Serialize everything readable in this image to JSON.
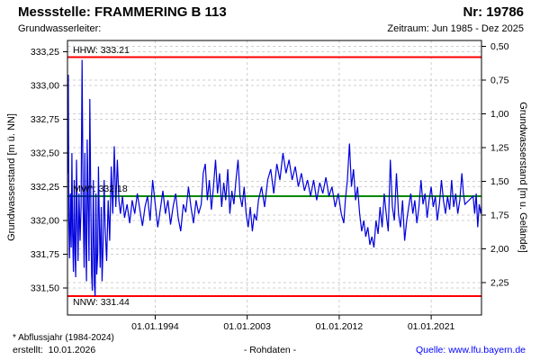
{
  "header": {
    "title": "Messstelle: FRAMMERING B 113",
    "number_label": "Nr: 19786",
    "aquifer_label": "Grundwasserleiter:",
    "period_label": "Zeitraum: Jun 1985 - Dez 2025"
  },
  "footer": {
    "footnote": "* Abflussjahr (1984-2024)",
    "created": "erstellt:  10.01.2026",
    "data_type": "- Rohdaten -",
    "source": "Quelle: www.lfu.bayern.de"
  },
  "colors": {
    "trace": "#0000dd",
    "hhw_nnw_line": "#ff0000",
    "mw_line": "#008800",
    "grid": "#cfcfcf",
    "frame": "#000000",
    "link": "#0000ff"
  },
  "chart_data": {
    "type": "line",
    "title": "",
    "grid": true,
    "x_axis": {
      "range": [
        1985.42,
        2025.92
      ],
      "ticks": [
        {
          "label": "01.01.1994",
          "year": 1994.0
        },
        {
          "label": "01.01.2003",
          "year": 2003.0
        },
        {
          "label": "01.01.2012",
          "year": 2012.0
        },
        {
          "label": "01.01.2021",
          "year": 2021.0
        }
      ]
    },
    "y_axis_left": {
      "title": "Grundwasserstand [m ü. NN]",
      "range": [
        331.3,
        333.3333
      ],
      "ticks": [
        {
          "label": "333,25",
          "value": 333.25
        },
        {
          "label": "333,00",
          "value": 333.0
        },
        {
          "label": "332,75",
          "value": 332.75
        },
        {
          "label": "332,50",
          "value": 332.5
        },
        {
          "label": "332,25",
          "value": 332.25
        },
        {
          "label": "332,00",
          "value": 332.0
        },
        {
          "label": "331,75",
          "value": 331.75
        },
        {
          "label": "331,50",
          "value": 331.5
        }
      ]
    },
    "y_axis_right": {
      "title": "Grundwasserstand [m u. Gelände]",
      "ground_elevation": 333.79,
      "ticks": [
        {
          "label": "0,50",
          "depth": 0.5
        },
        {
          "label": "0,75",
          "depth": 0.75
        },
        {
          "label": "1,00",
          "depth": 1.0
        },
        {
          "label": "1,25",
          "depth": 1.25
        },
        {
          "label": "1,50",
          "depth": 1.5
        },
        {
          "label": "1,75",
          "depth": 1.75
        },
        {
          "label": "2,00",
          "depth": 2.0
        },
        {
          "label": "2,25",
          "depth": 2.25
        }
      ]
    },
    "reference_lines": [
      {
        "name": "HHW",
        "label": "HHW: 333.21",
        "value": 333.21,
        "color": "#ff0000",
        "label_pos": "above"
      },
      {
        "name": "MW",
        "label": "MW*: 332.18",
        "value": 332.18,
        "color": "#008800",
        "label_pos": "above"
      },
      {
        "name": "NNW",
        "label": "NNW: 331.44",
        "value": 331.44,
        "color": "#ff0000",
        "label_pos": "below"
      }
    ],
    "series": [
      {
        "name": "Grundwasserstand Rohdaten",
        "color": "#0000dd",
        "points": [
          [
            1985.45,
            332.35
          ],
          [
            1985.5,
            333.08
          ],
          [
            1985.55,
            332.0
          ],
          [
            1985.62,
            331.72
          ],
          [
            1985.7,
            332.2
          ],
          [
            1985.78,
            331.8
          ],
          [
            1985.85,
            332.5
          ],
          [
            1985.92,
            331.9
          ],
          [
            1986.0,
            331.62
          ],
          [
            1986.08,
            332.3
          ],
          [
            1986.15,
            331.75
          ],
          [
            1986.22,
            331.58
          ],
          [
            1986.3,
            332.45
          ],
          [
            1986.38,
            332.0
          ],
          [
            1986.45,
            331.7
          ],
          [
            1986.55,
            332.2
          ],
          [
            1986.65,
            331.85
          ],
          [
            1986.75,
            332.1
          ],
          [
            1986.85,
            333.19
          ],
          [
            1986.95,
            332.1
          ],
          [
            1987.05,
            331.65
          ],
          [
            1987.12,
            332.5
          ],
          [
            1987.2,
            331.85
          ],
          [
            1987.28,
            331.55
          ],
          [
            1987.35,
            332.6
          ],
          [
            1987.45,
            332.05
          ],
          [
            1987.52,
            331.7
          ],
          [
            1987.6,
            332.9
          ],
          [
            1987.7,
            332.15
          ],
          [
            1987.78,
            331.6
          ],
          [
            1987.85,
            331.48
          ],
          [
            1987.95,
            332.3
          ],
          [
            1988.05,
            331.52
          ],
          [
            1988.12,
            331.44
          ],
          [
            1988.2,
            332.2
          ],
          [
            1988.28,
            331.6
          ],
          [
            1988.38,
            331.75
          ],
          [
            1988.45,
            332.4
          ],
          [
            1988.55,
            331.9
          ],
          [
            1988.62,
            331.65
          ],
          [
            1988.72,
            332.1
          ],
          [
            1988.8,
            331.55
          ],
          [
            1988.9,
            331.8
          ],
          [
            1989.0,
            332.3
          ],
          [
            1989.1,
            331.95
          ],
          [
            1989.25,
            331.7
          ],
          [
            1989.4,
            332.15
          ],
          [
            1989.55,
            331.85
          ],
          [
            1989.7,
            332.4
          ],
          [
            1989.85,
            332.05
          ],
          [
            1990.0,
            332.55
          ],
          [
            1990.15,
            332.1
          ],
          [
            1990.3,
            332.45
          ],
          [
            1990.45,
            332.15
          ],
          [
            1990.6,
            332.05
          ],
          [
            1990.8,
            332.18
          ],
          [
            1991.0,
            332.02
          ],
          [
            1991.25,
            332.12
          ],
          [
            1991.5,
            331.98
          ],
          [
            1991.75,
            332.15
          ],
          [
            1992.0,
            332.05
          ],
          [
            1992.25,
            332.2
          ],
          [
            1992.5,
            332.08
          ],
          [
            1992.75,
            331.96
          ],
          [
            1993.0,
            332.1
          ],
          [
            1993.25,
            332.18
          ],
          [
            1993.5,
            332.0
          ],
          [
            1993.75,
            332.3
          ],
          [
            1994.0,
            332.12
          ],
          [
            1994.25,
            331.95
          ],
          [
            1994.5,
            332.08
          ],
          [
            1994.75,
            332.22
          ],
          [
            1995.0,
            332.05
          ],
          [
            1995.25,
            332.15
          ],
          [
            1995.5,
            331.97
          ],
          [
            1995.75,
            332.1
          ],
          [
            1996.0,
            332.2
          ],
          [
            1996.25,
            332.02
          ],
          [
            1996.5,
            331.92
          ],
          [
            1996.75,
            332.12
          ],
          [
            1997.0,
            332.06
          ],
          [
            1997.25,
            332.25
          ],
          [
            1997.5,
            332.1
          ],
          [
            1997.75,
            331.98
          ],
          [
            1998.0,
            332.15
          ],
          [
            1998.25,
            332.05
          ],
          [
            1998.5,
            332.12
          ],
          [
            1998.7,
            332.35
          ],
          [
            1998.9,
            332.42
          ],
          [
            1999.1,
            332.15
          ],
          [
            1999.3,
            332.3
          ],
          [
            1999.5,
            332.08
          ],
          [
            1999.7,
            332.25
          ],
          [
            1999.9,
            332.45
          ],
          [
            2000.1,
            332.2
          ],
          [
            2000.3,
            332.35
          ],
          [
            2000.5,
            332.1
          ],
          [
            2000.7,
            332.28
          ],
          [
            2000.9,
            332.15
          ],
          [
            2001.1,
            332.38
          ],
          [
            2001.3,
            332.05
          ],
          [
            2001.5,
            332.22
          ],
          [
            2001.7,
            332.12
          ],
          [
            2001.9,
            332.3
          ],
          [
            2002.1,
            332.45
          ],
          [
            2002.3,
            332.18
          ],
          [
            2002.5,
            332.1
          ],
          [
            2002.7,
            332.25
          ],
          [
            2002.9,
            332.05
          ],
          [
            2003.1,
            331.95
          ],
          [
            2003.3,
            332.1
          ],
          [
            2003.5,
            331.92
          ],
          [
            2003.7,
            332.05
          ],
          [
            2003.9,
            332.0
          ],
          [
            2004.1,
            332.15
          ],
          [
            2004.4,
            332.25
          ],
          [
            2004.7,
            332.1
          ],
          [
            2005.0,
            332.3
          ],
          [
            2005.3,
            332.38
          ],
          [
            2005.6,
            332.2
          ],
          [
            2005.9,
            332.42
          ],
          [
            2006.2,
            332.3
          ],
          [
            2006.5,
            332.5
          ],
          [
            2006.8,
            332.35
          ],
          [
            2007.1,
            332.45
          ],
          [
            2007.4,
            332.3
          ],
          [
            2007.7,
            332.4
          ],
          [
            2008.0,
            332.25
          ],
          [
            2008.3,
            332.35
          ],
          [
            2008.6,
            332.22
          ],
          [
            2008.9,
            332.3
          ],
          [
            2009.2,
            332.18
          ],
          [
            2009.5,
            332.3
          ],
          [
            2009.8,
            332.15
          ],
          [
            2010.1,
            332.28
          ],
          [
            2010.4,
            332.2
          ],
          [
            2010.7,
            332.32
          ],
          [
            2011.0,
            332.18
          ],
          [
            2011.3,
            332.25
          ],
          [
            2011.6,
            332.1
          ],
          [
            2011.9,
            332.2
          ],
          [
            2012.2,
            332.05
          ],
          [
            2012.45,
            331.98
          ],
          [
            2012.6,
            332.15
          ],
          [
            2012.8,
            332.3
          ],
          [
            2013.0,
            332.57
          ],
          [
            2013.2,
            332.25
          ],
          [
            2013.4,
            332.38
          ],
          [
            2013.6,
            332.15
          ],
          [
            2013.8,
            332.25
          ],
          [
            2014.0,
            332.05
          ],
          [
            2014.2,
            331.92
          ],
          [
            2014.4,
            332.0
          ],
          [
            2014.6,
            331.88
          ],
          [
            2014.8,
            331.95
          ],
          [
            2015.0,
            331.82
          ],
          [
            2015.2,
            331.88
          ],
          [
            2015.4,
            331.8
          ],
          [
            2015.6,
            332.0
          ],
          [
            2015.8,
            331.9
          ],
          [
            2016.0,
            332.1
          ],
          [
            2016.2,
            331.95
          ],
          [
            2016.4,
            332.2
          ],
          [
            2016.6,
            332.05
          ],
          [
            2016.8,
            331.92
          ],
          [
            2017.0,
            332.45
          ],
          [
            2017.2,
            332.1
          ],
          [
            2017.4,
            332.0
          ],
          [
            2017.6,
            332.35
          ],
          [
            2017.8,
            332.05
          ],
          [
            2018.0,
            331.95
          ],
          [
            2018.2,
            332.15
          ],
          [
            2018.4,
            331.85
          ],
          [
            2018.6,
            332.0
          ],
          [
            2018.8,
            332.1
          ],
          [
            2019.0,
            332.2
          ],
          [
            2019.2,
            332.05
          ],
          [
            2019.4,
            332.15
          ],
          [
            2019.6,
            331.98
          ],
          [
            2019.8,
            332.1
          ],
          [
            2020.0,
            332.3
          ],
          [
            2020.2,
            332.12
          ],
          [
            2020.4,
            332.2
          ],
          [
            2020.6,
            332.02
          ],
          [
            2020.8,
            332.15
          ],
          [
            2021.0,
            332.25
          ],
          [
            2021.2,
            332.1
          ],
          [
            2021.4,
            332.18
          ],
          [
            2021.6,
            332.0
          ],
          [
            2021.8,
            332.12
          ],
          [
            2022.0,
            332.3
          ],
          [
            2022.2,
            332.15
          ],
          [
            2022.4,
            332.05
          ],
          [
            2022.6,
            332.18
          ],
          [
            2022.8,
            332.08
          ],
          [
            2023.0,
            332.3
          ],
          [
            2023.2,
            332.1
          ],
          [
            2023.4,
            332.2
          ],
          [
            2023.6,
            332.05
          ],
          [
            2023.8,
            332.15
          ],
          [
            2024.0,
            332.35
          ],
          [
            2024.15,
            332.2
          ],
          [
            2024.3,
            332.12
          ],
          [
            2025.1,
            332.18
          ],
          [
            2025.25,
            332.05
          ],
          [
            2025.4,
            332.2
          ],
          [
            2025.55,
            331.95
          ],
          [
            2025.7,
            332.12
          ],
          [
            2025.85,
            332.05
          ],
          [
            2025.92,
            332.1
          ]
        ]
      }
    ]
  }
}
